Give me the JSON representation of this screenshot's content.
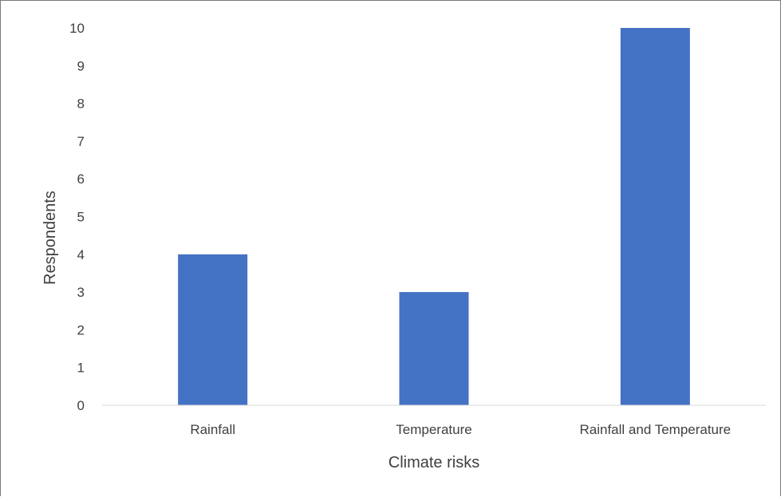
{
  "chart_data": {
    "type": "bar",
    "categories": [
      "Rainfall",
      "Temperature",
      "Rainfall and Temperature"
    ],
    "values": [
      4,
      3,
      10
    ],
    "xlabel": "Climate risks",
    "ylabel": "Respondents",
    "ylim": [
      0,
      10
    ],
    "yticks": [
      "0",
      "1",
      "2",
      "3",
      "4",
      "5",
      "6",
      "7",
      "8",
      "9",
      "10"
    ],
    "bar_color": "#4472C4",
    "grid": false,
    "legend": "none"
  }
}
